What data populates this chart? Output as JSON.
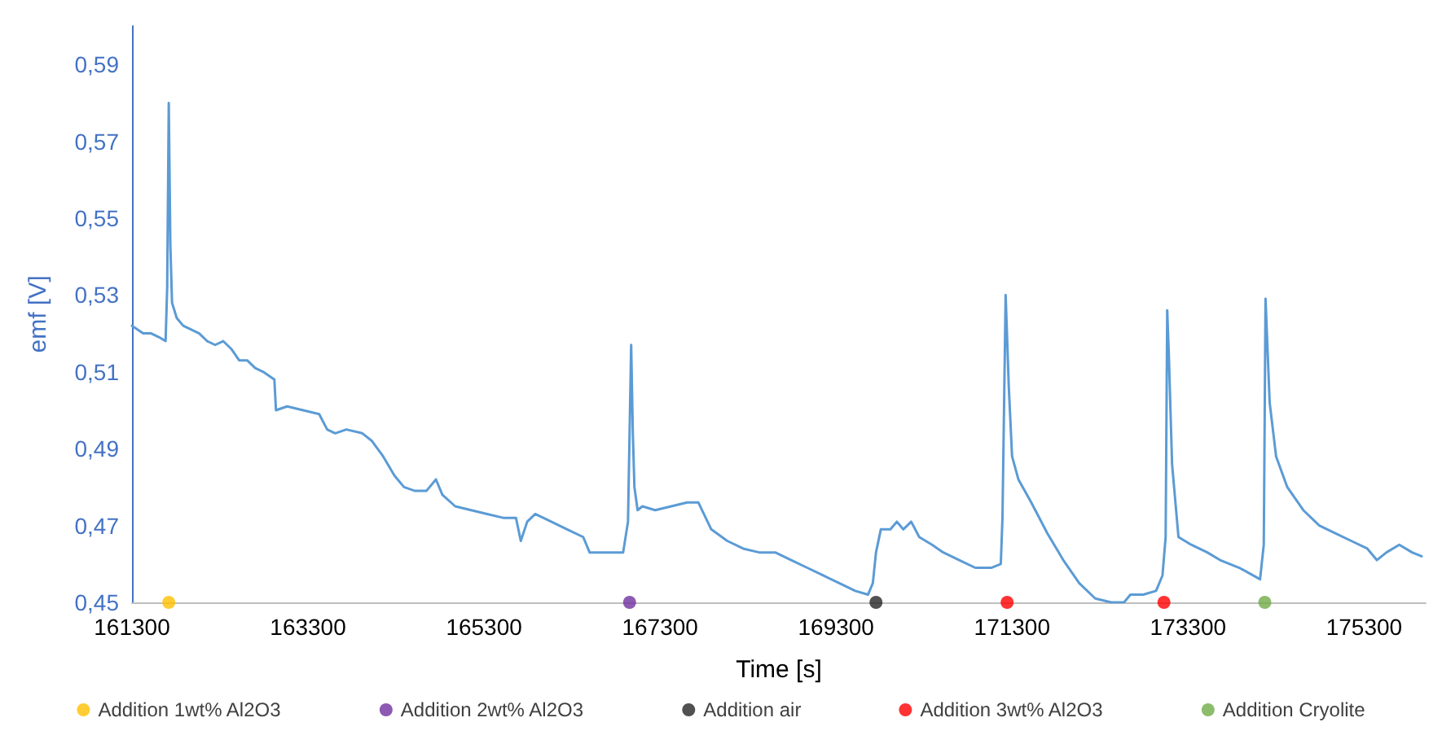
{
  "chart_data": {
    "type": "line",
    "xlabel": "Time [s]",
    "ylabel": "emf [V]",
    "xlim": [
      161300,
      176000
    ],
    "xticks": [
      161300,
      163300,
      165300,
      167300,
      169300,
      171300,
      173300,
      175300
    ],
    "ylim": [
      0.45,
      0.6
    ],
    "yticks": [
      {
        "value": 0.45,
        "label": "0,45"
      },
      {
        "value": 0.47,
        "label": "0,47"
      },
      {
        "value": 0.49,
        "label": "0,49"
      },
      {
        "value": 0.51,
        "label": "0,51"
      },
      {
        "value": 0.53,
        "label": "0,53"
      },
      {
        "value": 0.55,
        "label": "0,55"
      },
      {
        "value": 0.57,
        "label": "0,57"
      },
      {
        "value": 0.59,
        "label": "0,59"
      }
    ],
    "grid": false,
    "legend": "bottom",
    "marker": "none",
    "line_style": "solid",
    "series": [
      {
        "color": "#5b9bd5",
        "x": [
          161300,
          161427,
          161518,
          161609,
          161682,
          161700,
          161718,
          161736,
          161755,
          161809,
          161882,
          161973,
          162064,
          162154,
          162245,
          162336,
          162427,
          162518,
          162609,
          162700,
          162791,
          162918,
          162936,
          163063,
          163245,
          163427,
          163518,
          163609,
          163736,
          163918,
          164027,
          164154,
          164282,
          164391,
          164518,
          164645,
          164754,
          164827,
          164973,
          165154,
          165336,
          165518,
          165663,
          165718,
          165791,
          165882,
          166064,
          166245,
          166427,
          166500,
          166700,
          166881,
          166936,
          166972,
          166991,
          167009,
          167045,
          167100,
          167245,
          167427,
          167609,
          167736,
          167882,
          168064,
          168245,
          168427,
          168609,
          168791,
          168973,
          169154,
          169336,
          169518,
          169663,
          169718,
          169754,
          169809,
          169918,
          169991,
          170064,
          170154,
          170245,
          170391,
          170518,
          170700,
          170882,
          171063,
          171172,
          171191,
          171227,
          171263,
          171300,
          171372,
          171518,
          171700,
          171882,
          172063,
          172245,
          172427,
          172572,
          172645,
          172791,
          172936,
          173009,
          173045,
          173063,
          173082,
          173118,
          173191,
          173336,
          173518,
          173664,
          173882,
          174118,
          174160,
          174180,
          174227,
          174300,
          174427,
          174609,
          174791,
          174973,
          175154,
          175336,
          175445,
          175554,
          175700,
          175845,
          175954
        ],
        "values": [
          0.522,
          0.52,
          0.52,
          0.519,
          0.518,
          0.532,
          0.58,
          0.543,
          0.528,
          0.524,
          0.522,
          0.521,
          0.52,
          0.518,
          0.517,
          0.518,
          0.516,
          0.513,
          0.513,
          0.511,
          0.51,
          0.508,
          0.5,
          0.501,
          0.5,
          0.499,
          0.495,
          0.494,
          0.495,
          0.494,
          0.492,
          0.488,
          0.483,
          0.48,
          0.479,
          0.479,
          0.482,
          0.478,
          0.475,
          0.474,
          0.473,
          0.472,
          0.472,
          0.466,
          0.471,
          0.473,
          0.471,
          0.469,
          0.467,
          0.463,
          0.463,
          0.463,
          0.471,
          0.517,
          0.494,
          0.48,
          0.474,
          0.475,
          0.474,
          0.475,
          0.476,
          0.476,
          0.469,
          0.466,
          0.464,
          0.463,
          0.463,
          0.461,
          0.459,
          0.457,
          0.455,
          0.453,
          0.452,
          0.455,
          0.463,
          0.469,
          0.469,
          0.471,
          0.469,
          0.471,
          0.467,
          0.465,
          0.463,
          0.461,
          0.459,
          0.459,
          0.46,
          0.472,
          0.53,
          0.506,
          0.488,
          0.482,
          0.476,
          0.468,
          0.461,
          0.455,
          0.451,
          0.45,
          0.45,
          0.452,
          0.452,
          0.453,
          0.457,
          0.467,
          0.526,
          0.514,
          0.486,
          0.467,
          0.465,
          0.463,
          0.461,
          0.459,
          0.456,
          0.465,
          0.529,
          0.502,
          0.488,
          0.48,
          0.474,
          0.47,
          0.468,
          0.466,
          0.464,
          0.461,
          0.463,
          0.465,
          0.463,
          0.462
        ]
      },
      {
        "type": "scatter",
        "marker": "circle",
        "name": "Addition 1wt% Al2O3",
        "color": "#ffc000",
        "x": [
          161718
        ],
        "values": [
          0.45
        ]
      },
      {
        "type": "scatter",
        "marker": "circle",
        "name": "Addition 2wt% Al2O3",
        "color": "#7030a0",
        "x": [
          166954
        ],
        "values": [
          0.45
        ]
      },
      {
        "type": "scatter",
        "marker": "circle",
        "name": "Addition air",
        "color": "#262626",
        "x": [
          169754
        ],
        "values": [
          0.45
        ]
      },
      {
        "type": "scatter",
        "marker": "circle",
        "name": "Addition 3wt% Al2O3",
        "color": "#ff0000",
        "x": [
          171244,
          173026
        ],
        "values": [
          0.45,
          0.45
        ]
      },
      {
        "type": "scatter",
        "marker": "circle",
        "name": "Addition Cryolite",
        "color": "#70ad47",
        "x": [
          174172
        ],
        "values": [
          0.45
        ]
      }
    ]
  }
}
